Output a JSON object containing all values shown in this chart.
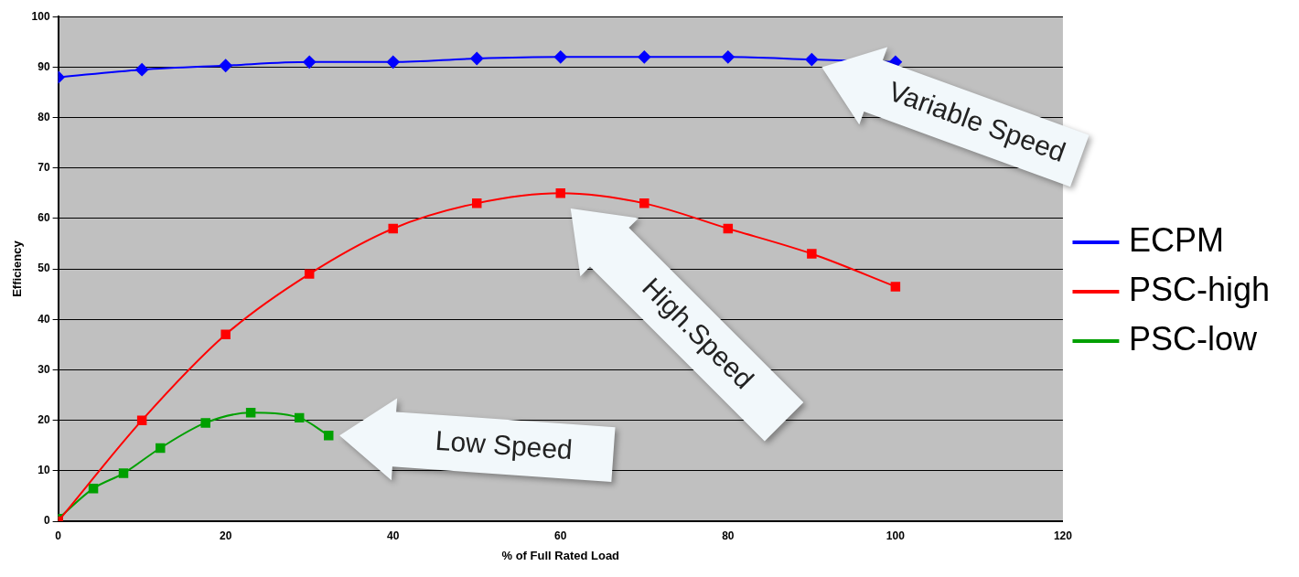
{
  "chart_data": {
    "type": "line",
    "xlabel": "% of Full Rated Load",
    "ylabel": "Efficiency",
    "xlim": [
      0,
      120
    ],
    "xticks": [
      0,
      20,
      40,
      60,
      80,
      100,
      120
    ],
    "ylim": [
      0,
      100
    ],
    "yticks": [
      0,
      10,
      20,
      30,
      40,
      50,
      60,
      70,
      80,
      90,
      100
    ],
    "grid": "y",
    "legend": "right",
    "series": [
      {
        "name": "ECPM",
        "color": "#0000ff",
        "marker": "diamond",
        "x": [
          0,
          10,
          20,
          30,
          40,
          50,
          60,
          70,
          80,
          90,
          100
        ],
        "values": [
          88,
          89.5,
          90.3,
          91,
          91,
          91.7,
          92,
          92,
          92,
          91.5,
          91
        ]
      },
      {
        "name": "PSC-high",
        "color": "#ff0000",
        "marker": "square",
        "x": [
          0,
          10,
          20,
          30,
          40,
          50,
          60,
          70,
          80,
          90,
          100
        ],
        "values": [
          0,
          20,
          37,
          49,
          58,
          63,
          65,
          63,
          58,
          53,
          46.5
        ]
      },
      {
        "name": "PSC-low",
        "color": "#00a000",
        "marker": "square",
        "x": [
          0,
          4.2,
          7.8,
          12.2,
          17.6,
          23,
          28.8,
          32.3
        ],
        "values": [
          0.5,
          6.5,
          9.5,
          14.5,
          19.5,
          21.5,
          20.5,
          17
        ]
      }
    ],
    "annotations": [
      "Variable Speed",
      "High.Speed",
      "Low Speed"
    ]
  }
}
